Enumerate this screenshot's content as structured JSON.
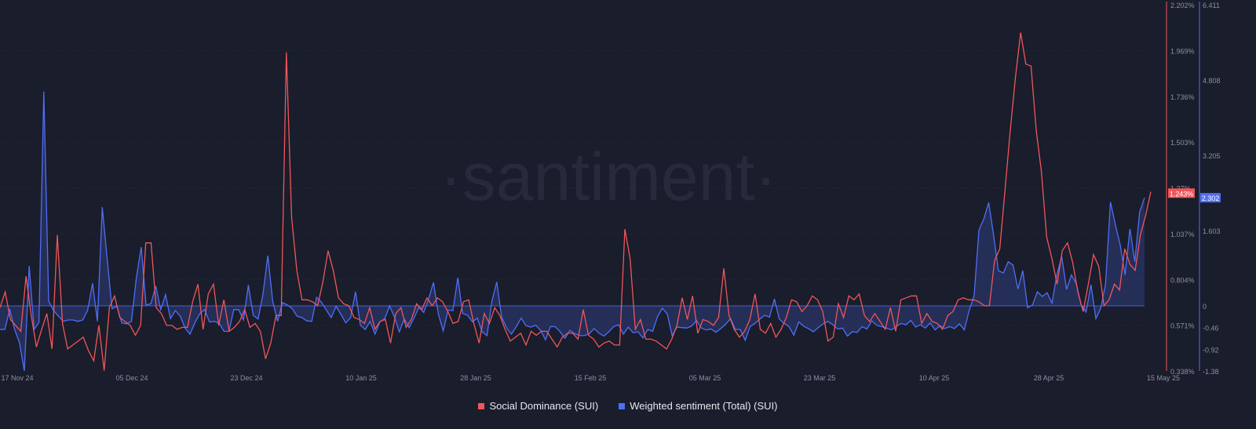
{
  "watermark": "·santiment·",
  "colors": {
    "background": "#1a1d2b",
    "social_dominance": "#f0565a",
    "weighted_sentiment": "#4f6ef7",
    "gridline": "#2a2e3d",
    "axis_text": "#8a90a3"
  },
  "chart_data": {
    "type": "line",
    "x_tick_labels": [
      "17 Nov 24",
      "05 Dec 24",
      "23 Dec 24",
      "10 Jan 25",
      "28 Jan 25",
      "15 Feb 25",
      "05 Mar 25",
      "23 Mar 25",
      "10 Apr 25",
      "28 Apr 25",
      "15 May 25"
    ],
    "x_range": [
      "2024-11-17",
      "2025-05-15"
    ],
    "left_axis": {
      "series": "Social Dominance (SUI)",
      "ticks": [
        "2.202%",
        "1.969%",
        "1.736%",
        "1.503%",
        "1.27%",
        "1.037%",
        "0.804%",
        "0.571%",
        "0.338%"
      ],
      "range": [
        0.338,
        2.202
      ],
      "current_value_label": "1.243%"
    },
    "right_axis": {
      "series": "Weighted sentiment (Total) (SUI)",
      "ticks": [
        "6.411",
        "4.808",
        "3.205",
        "1.603",
        "0",
        "-0.46",
        "-0.92",
        "-1.38"
      ],
      "range_positive": [
        0,
        6.411
      ],
      "range_negative": [
        -1.38,
        0
      ],
      "current_value_label": "2.302"
    },
    "series": [
      {
        "name": "Social Dominance (SUI)",
        "color": "#f0565a",
        "values": [
          0.66,
          0.74,
          0.6,
          0.57,
          0.54,
          0.82,
          0.62,
          0.46,
          0.55,
          0.63,
          0.45,
          1.03,
          0.58,
          0.45,
          0.47,
          0.49,
          0.51,
          0.44,
          0.39,
          0.57,
          0.34,
          0.66,
          0.72,
          0.61,
          0.59,
          0.57,
          0.52,
          0.57,
          0.99,
          0.99,
          0.66,
          0.63,
          0.57,
          0.57,
          0.55,
          0.56,
          0.56,
          0.69,
          0.78,
          0.55,
          0.73,
          0.78,
          0.57,
          0.7,
          0.54,
          0.56,
          0.59,
          0.65,
          0.56,
          0.58,
          0.54,
          0.4,
          0.48,
          0.62,
          0.62,
          1.96,
          1.12,
          0.85,
          0.7,
          0.7,
          0.69,
          0.67,
          0.79,
          0.95,
          0.85,
          0.71,
          0.68,
          0.67,
          0.61,
          0.6,
          0.58,
          0.66,
          0.55,
          0.59,
          0.6,
          0.48,
          0.63,
          0.66,
          0.56,
          0.6,
          0.68,
          0.65,
          0.71,
          0.67,
          0.71,
          0.69,
          0.64,
          0.58,
          0.59,
          0.69,
          0.7,
          0.58,
          0.48,
          0.63,
          0.58,
          0.66,
          0.62,
          0.55,
          0.49,
          0.51,
          0.53,
          0.47,
          0.54,
          0.52,
          0.54,
          0.54,
          0.5,
          0.46,
          0.51,
          0.53,
          0.53,
          0.5,
          0.65,
          0.52,
          0.5,
          0.46,
          0.48,
          0.49,
          0.47,
          0.47,
          1.06,
          0.91,
          0.55,
          0.6,
          0.5,
          0.5,
          0.49,
          0.47,
          0.45,
          0.5,
          0.57,
          0.71,
          0.6,
          0.72,
          0.53,
          0.6,
          0.59,
          0.57,
          0.61,
          0.86,
          0.62,
          0.55,
          0.51,
          0.54,
          0.6,
          0.73,
          0.55,
          0.53,
          0.58,
          0.51,
          0.55,
          0.61,
          0.7,
          0.69,
          0.64,
          0.67,
          0.72,
          0.7,
          0.64,
          0.49,
          0.51,
          0.68,
          0.61,
          0.72,
          0.7,
          0.73,
          0.62,
          0.59,
          0.63,
          0.59,
          0.55,
          0.66,
          0.54,
          0.7,
          0.71,
          0.72,
          0.72,
          0.58,
          0.63,
          0.59,
          0.58,
          0.55,
          0.62,
          0.64,
          0.7,
          0.71,
          0.7,
          0.7,
          0.69,
          0.67,
          0.67,
          0.9,
          0.96,
          1.26,
          1.56,
          1.83,
          2.06,
          1.9,
          1.89,
          1.56,
          1.35,
          1.02,
          0.91,
          0.78,
          0.95,
          0.99,
          0.89,
          0.74,
          0.64,
          0.78,
          0.93,
          0.87,
          0.67,
          0.7,
          0.78,
          0.75,
          0.96,
          0.88,
          0.85,
          1.03,
          1.13,
          1.25
        ]
      },
      {
        "name": "Weighted sentiment (Total) (SUI)",
        "color": "#4f6ef7",
        "values": [
          -0.5,
          -0.5,
          -0.07,
          -0.5,
          -0.78,
          -1.38,
          0.85,
          -0.5,
          -0.35,
          4.56,
          0.1,
          -0.1,
          -0.22,
          -0.33,
          -0.3,
          -0.3,
          -0.33,
          -0.3,
          -0.09,
          0.48,
          -0.33,
          2.1,
          1.0,
          -0.06,
          -0.01,
          -0.36,
          -0.38,
          -0.33,
          0.6,
          1.25,
          0.01,
          0.05,
          0.42,
          -0.08,
          0.24,
          -0.27,
          -0.1,
          -0.22,
          -0.47,
          -0.6,
          -0.36,
          -0.17,
          -0.08,
          -0.34,
          -0.33,
          -0.37,
          -0.54,
          -0.54,
          -0.08,
          -0.08,
          -0.3,
          0.44,
          -0.2,
          -0.28,
          0.25,
          1.07,
          0.1,
          -0.33,
          0.07,
          0.02,
          -0.06,
          -0.22,
          -0.25,
          -0.32,
          -0.33,
          0.18,
          0.08,
          -0.09,
          -0.25,
          -0.01,
          -0.18,
          -0.36,
          -0.25,
          0.3,
          -0.41,
          -0.5,
          -0.33,
          -0.6,
          -0.34,
          -0.27,
          0.0,
          -0.24,
          -0.55,
          -0.28,
          -0.46,
          -0.26,
          -0.03,
          -0.14,
          0.15,
          0.5,
          -0.17,
          -0.53,
          -0.09,
          -0.1,
          0.6,
          -0.16,
          -0.2,
          -0.34,
          -0.26,
          -0.55,
          -0.63,
          0.1,
          0.51,
          -0.24,
          -0.46,
          -0.6,
          -0.44,
          -0.26,
          -0.42,
          -0.45,
          -0.41,
          -0.52,
          -0.72,
          -0.44,
          -0.44,
          -0.55,
          -0.69,
          -0.52,
          -0.59,
          -0.63,
          -0.63,
          -0.59,
          -0.48,
          -0.58,
          -0.64,
          -0.55,
          -0.44,
          -0.4,
          -0.6,
          -0.45,
          -0.57,
          -0.55,
          -0.68,
          -0.5,
          -0.54,
          -0.23,
          -0.05,
          -0.17,
          -0.63,
          -0.45,
          -0.46,
          -0.47,
          -0.43,
          -0.31,
          -0.47,
          -0.51,
          -0.49,
          -0.56,
          -0.48,
          -0.39,
          -0.27,
          -0.5,
          -0.5,
          -0.73,
          -0.44,
          -0.37,
          -0.28,
          -0.2,
          -0.24,
          0.15,
          -0.28,
          -0.37,
          -0.44,
          -0.62,
          -0.34,
          -0.43,
          -0.48,
          -0.55,
          -0.46,
          -0.38,
          -0.33,
          -0.4,
          -0.49,
          -0.47,
          -0.64,
          -0.55,
          -0.56,
          -0.44,
          -0.49,
          -0.32,
          -0.41,
          -0.44,
          -0.47,
          -0.51,
          -0.44,
          -0.37,
          -0.4,
          -0.31,
          -0.45,
          -0.4,
          -0.47,
          -0.36,
          -0.51,
          -0.42,
          -0.48,
          -0.44,
          -0.48,
          -0.38,
          -0.51,
          -0.1,
          0.22,
          1.62,
          1.85,
          2.2,
          1.51,
          0.75,
          0.7,
          0.94,
          0.87,
          0.36,
          0.75,
          -0.04,
          0.02,
          0.3,
          0.2,
          0.28,
          0.06,
          0.66,
          1.05,
          0.35,
          0.66,
          0.47,
          0.02,
          -0.13,
          0.45,
          -0.27,
          -0.05,
          0.47,
          2.21,
          1.73,
          1.3,
          0.66,
          1.64,
          0.94,
          2.0,
          2.3
        ]
      }
    ]
  },
  "legend": [
    {
      "label": "Social Dominance (SUI)",
      "color": "#f0565a"
    },
    {
      "label": "Weighted sentiment (Total) (SUI)",
      "color": "#4f6ef7"
    }
  ]
}
